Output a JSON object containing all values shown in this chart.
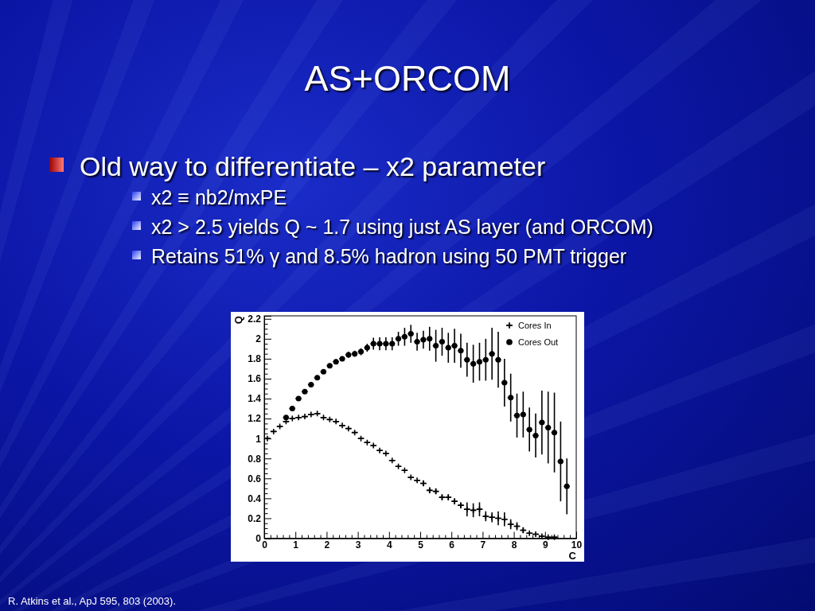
{
  "chart_data": {
    "type": "scatter",
    "title": "AS+ORCOM",
    "annotations": [
      "Old way to differentiate – x2 parameter",
      "x2 ≡ nb2/mxPE",
      "x2 > 2.5 yields Q ~ 1.7 using just AS layer (and ORCOM)",
      "Retains 51% γ and 8.5% hadron using 50 PMT trigger",
      "R. Atkins et al., ApJ 595, 803 (2003)."
    ],
    "xlabel": "C",
    "ylabel": "Q",
    "legend": "top right",
    "xlim": [
      0,
      10
    ],
    "xticks": [
      0,
      {
        "value": 0.2,
        "label": null
      },
      {
        "value": 0.4,
        "label": null
      },
      {
        "value": 0.6,
        "label": null
      },
      {
        "value": 0.8,
        "label": null
      },
      1,
      {
        "value": 1.2,
        "label": null
      },
      {
        "value": 1.4,
        "label": null
      },
      {
        "value": 1.6,
        "label": null
      },
      {
        "value": 1.8,
        "label": null
      },
      2,
      {
        "value": 2.2,
        "label": null
      },
      {
        "value": 2.4,
        "label": null
      },
      {
        "value": 2.6,
        "label": null
      },
      {
        "value": 2.8,
        "label": null
      },
      3,
      {
        "value": 3.2,
        "label": null
      },
      {
        "value": 3.4,
        "label": null
      },
      {
        "value": 3.6,
        "label": null
      },
      {
        "value": 3.8,
        "label": null
      },
      4,
      {
        "value": 4.2,
        "label": null
      },
      {
        "value": 4.4,
        "label": null
      },
      {
        "value": 4.6,
        "label": null
      },
      {
        "value": 4.8,
        "label": null
      },
      5,
      {
        "value": 5.2,
        "label": null
      },
      {
        "value": 5.4,
        "label": null
      },
      {
        "value": 5.6,
        "label": null
      },
      {
        "value": 5.8,
        "label": null
      },
      6,
      {
        "value": 6.2,
        "label": null
      },
      {
        "value": 6.4,
        "label": null
      },
      {
        "value": 6.6,
        "label": null
      },
      {
        "value": 6.8,
        "label": null
      },
      7,
      {
        "value": 7.2,
        "label": null
      },
      {
        "value": 7.4,
        "label": null
      },
      {
        "value": 7.6,
        "label": null
      },
      {
        "value": 7.8,
        "label": null
      },
      8,
      {
        "value": 8.2,
        "label": null
      },
      {
        "value": 8.4,
        "label": null
      },
      {
        "value": 8.6,
        "label": null
      },
      {
        "value": 8.8,
        "label": null
      },
      9,
      {
        "value": 9.2,
        "label": null
      },
      {
        "value": 9.4,
        "label": null
      },
      {
        "value": 9.6,
        "label": null
      },
      {
        "value": 9.8,
        "label": null
      },
      10
    ],
    "ylim": [
      0,
      2.23
    ],
    "yticks": [
      0,
      {
        "value": 0.05,
        "label": null
      },
      {
        "value": 0.1,
        "label": null
      },
      {
        "value": 0.15,
        "label": null
      },
      0.2,
      {
        "value": 0.25,
        "label": null
      },
      {
        "value": 0.3,
        "label": null
      },
      {
        "value": 0.35,
        "label": null
      },
      0.4,
      {
        "value": 0.45,
        "label": null
      },
      {
        "value": 0.5,
        "label": null
      },
      {
        "value": 0.55,
        "label": null
      },
      0.6,
      {
        "value": 0.65,
        "label": null
      },
      {
        "value": 0.7,
        "label": null
      },
      {
        "value": 0.75,
        "label": null
      },
      0.8,
      {
        "value": 0.85,
        "label": null
      },
      {
        "value": 0.9,
        "label": null
      },
      {
        "value": 0.95,
        "label": null
      },
      1,
      {
        "value": 1.05,
        "label": null
      },
      {
        "value": 1.1,
        "label": null
      },
      {
        "value": 1.15,
        "label": null
      },
      1.2,
      {
        "value": 1.25,
        "label": null
      },
      {
        "value": 1.3,
        "label": null
      },
      {
        "value": 1.35,
        "label": null
      },
      1.4,
      {
        "value": 1.45,
        "label": null
      },
      {
        "value": 1.5,
        "label": null
      },
      {
        "value": 1.55,
        "label": null
      },
      1.6,
      {
        "value": 1.65,
        "label": null
      },
      {
        "value": 1.7,
        "label": null
      },
      {
        "value": 1.75,
        "label": null
      },
      1.8,
      {
        "value": 1.85,
        "label": null
      },
      {
        "value": 1.9,
        "label": null
      },
      {
        "value": 1.95,
        "label": null
      },
      2,
      {
        "value": 2.05,
        "label": null
      },
      {
        "value": 2.1,
        "label": null
      },
      {
        "value": 2.15,
        "label": null
      },
      2.2
    ],
    "x": [
      0.1,
      0.3,
      0.5,
      0.7,
      0.9,
      1.1,
      1.3,
      1.5,
      1.7,
      1.9,
      2.1,
      2.3,
      2.5,
      2.7,
      2.9,
      3.1,
      3.3,
      3.5,
      3.7,
      3.9,
      4.1,
      4.3,
      4.5,
      4.7,
      4.9,
      5.1,
      5.3,
      5.5,
      5.7,
      5.9,
      6.1,
      6.3,
      6.5,
      6.7,
      6.9,
      7.1,
      7.3,
      7.5,
      7.7,
      7.9,
      8.1,
      8.3,
      8.5,
      8.7,
      8.9,
      9.1,
      9.3,
      9.5,
      9.7
    ],
    "series": [
      {
        "name": "Cores In",
        "color": "#000000",
        "marker": "cross",
        "values": [
          1.0,
          1.07,
          1.12,
          1.17,
          1.2,
          1.21,
          1.22,
          1.24,
          1.25,
          1.21,
          1.19,
          1.17,
          1.13,
          1.1,
          1.06,
          1.0,
          0.96,
          0.93,
          0.88,
          0.85,
          0.78,
          0.72,
          0.68,
          0.61,
          0.58,
          0.55,
          0.48,
          0.47,
          0.41,
          0.41,
          0.37,
          0.33,
          0.29,
          0.28,
          0.29,
          0.22,
          0.21,
          0.2,
          0.19,
          0.14,
          0.12,
          0.08,
          0.05,
          0.04,
          0.02,
          0.01,
          0.01,
          null,
          null
        ],
        "errors": [
          null,
          null,
          null,
          null,
          null,
          null,
          null,
          null,
          null,
          null,
          null,
          null,
          null,
          null,
          null,
          null,
          null,
          null,
          null,
          null,
          null,
          null,
          null,
          null,
          null,
          0.03,
          0.03,
          0.03,
          0.03,
          0.03,
          0.03,
          0.03,
          0.07,
          0.07,
          0.07,
          0.05,
          0.05,
          0.07,
          0.07,
          0.05,
          0.04,
          0.03,
          null,
          null,
          null,
          null,
          null,
          null,
          null
        ],
        "xerrors": [
          0.1,
          0.1,
          0.1,
          0.1,
          0.1,
          0.1,
          0.1,
          0.1,
          0.1,
          0.1,
          0.1,
          0.1,
          0.1,
          0.1,
          0.1,
          0.1,
          0.1,
          0.1,
          0.1,
          0.1,
          0.1,
          0.1,
          0.1,
          0.1,
          0.1,
          0.1,
          0.1,
          0.1,
          0.1,
          0.1,
          0.1,
          0.1,
          0.1,
          0.1,
          0.1,
          0.1,
          0.1,
          0.1,
          0.1,
          0.1,
          0.1,
          0.1,
          0.1,
          0.1,
          0.1,
          0.1,
          0.1,
          null,
          null
        ]
      },
      {
        "name": "Cores Out",
        "color": "#000000",
        "marker": "circle",
        "line_style": "dotted",
        "values": [
          null,
          null,
          null,
          1.21,
          1.3,
          1.4,
          1.47,
          1.54,
          1.61,
          1.67,
          1.73,
          1.77,
          1.8,
          1.84,
          1.85,
          1.87,
          1.91,
          1.95,
          1.95,
          1.95,
          1.95,
          2.0,
          2.02,
          2.05,
          1.97,
          1.99,
          2.0,
          1.93,
          1.97,
          1.91,
          1.93,
          1.88,
          1.79,
          1.75,
          1.77,
          1.79,
          1.85,
          1.79,
          1.56,
          1.41,
          1.23,
          1.24,
          1.09,
          1.03,
          1.16,
          1.11,
          1.06,
          0.77,
          0.52
        ],
        "errors": [
          null,
          null,
          null,
          0.01,
          0.015,
          0.015,
          0.015,
          0.02,
          0.02,
          0.02,
          0.02,
          0.025,
          0.025,
          0.03,
          0.03,
          0.035,
          0.04,
          0.06,
          0.065,
          0.065,
          0.065,
          0.07,
          0.09,
          0.09,
          0.09,
          0.09,
          0.12,
          0.16,
          0.14,
          0.15,
          0.17,
          0.17,
          0.17,
          0.19,
          0.19,
          0.21,
          0.26,
          0.28,
          0.24,
          0.24,
          0.22,
          0.23,
          0.22,
          0.22,
          0.32,
          0.36,
          0.4,
          0.4,
          0.28
        ],
        "xerrors": [
          null,
          null,
          null,
          0.1,
          0.1,
          0.1,
          0.1,
          0.1,
          0.1,
          0.1,
          0.1,
          0.1,
          0.1,
          0.1,
          0.1,
          0.1,
          0.1,
          0.1,
          0.1,
          0.1,
          0.1,
          0.1,
          0.1,
          0.1,
          0.1,
          0.1,
          0.1,
          0.1,
          0.1,
          0.1,
          0.1,
          0.1,
          0.1,
          0.1,
          0.1,
          0.1,
          0.1,
          0.1,
          0.1,
          0.1,
          0.1,
          0.1,
          0.1,
          0.1,
          0.1,
          0.1,
          0.1,
          0.1,
          0.1
        ]
      }
    ]
  }
}
